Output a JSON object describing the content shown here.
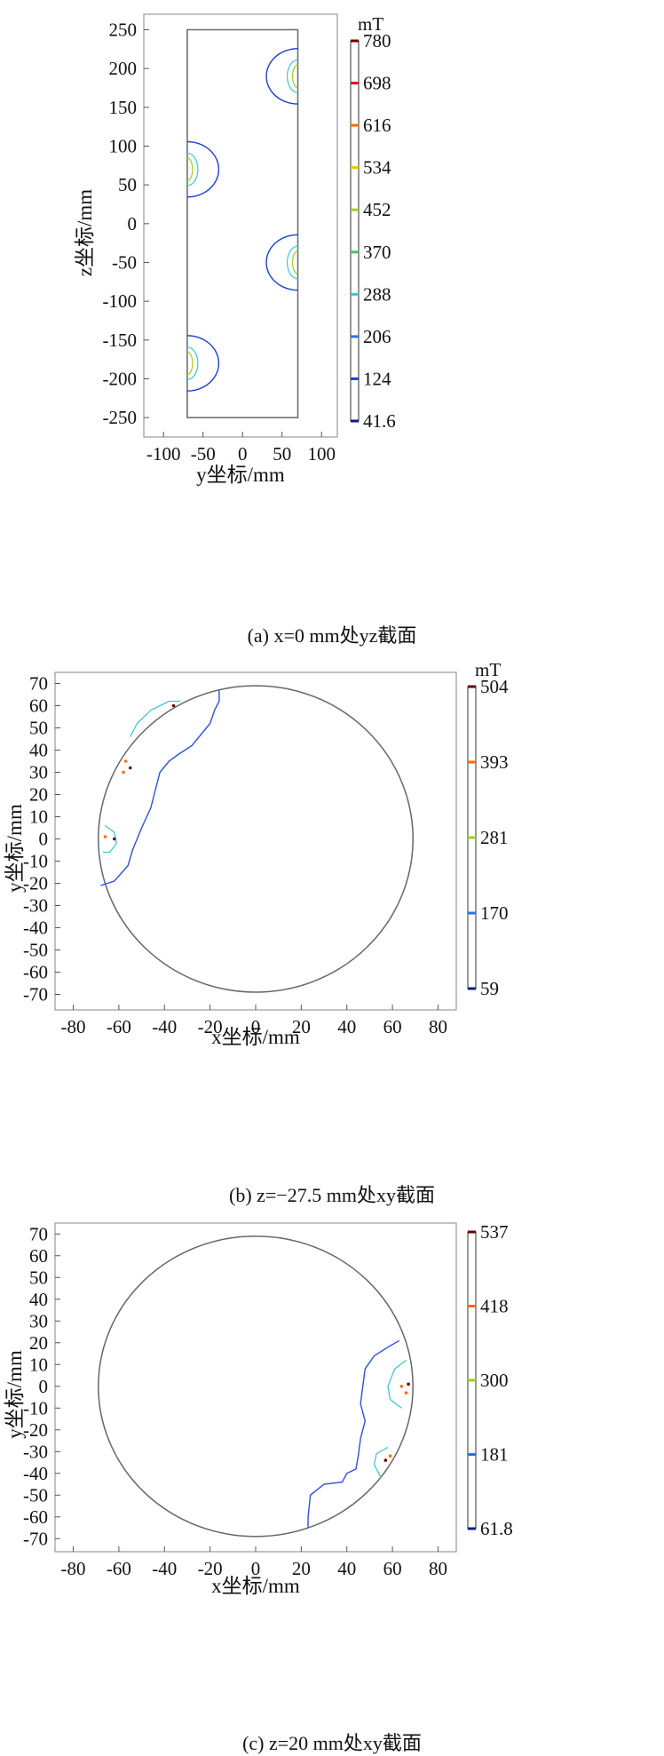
{
  "chart_data": [
    {
      "id": "a",
      "type": "contour",
      "caption": "(a) x=0 mm处yz截面",
      "xlabel": "y坐标/mm",
      "ylabel": "z坐标/mm",
      "xlim": [
        -125,
        120
      ],
      "ylim": [
        -275,
        270
      ],
      "xticks": [
        -100,
        -50,
        0,
        50,
        100
      ],
      "yticks": [
        250,
        200,
        150,
        100,
        50,
        0,
        -50,
        -100,
        -150,
        -200,
        -250
      ],
      "colorbar": {
        "unit": "mT",
        "levels": [
          780,
          698,
          616,
          534,
          452,
          370,
          288,
          206,
          124,
          41.6
        ],
        "colors": [
          "#6b0000",
          "#e01010",
          "#ff6a00",
          "#e8c000",
          "#9ad020",
          "#40c860",
          "#30c8d0",
          "#2e70e0",
          "#1c40c8",
          "#101c80"
        ]
      },
      "boundary": {
        "shape": "rect",
        "y": [
          -70,
          70
        ],
        "z": [
          -250,
          250
        ]
      },
      "hotspots": [
        {
          "side": "right",
          "z_center": 190,
          "radius": 42
        },
        {
          "side": "left",
          "z_center": 70,
          "radius": 42
        },
        {
          "side": "right",
          "z_center": -50,
          "radius": 42
        },
        {
          "side": "left",
          "z_center": -180,
          "radius": 42
        }
      ]
    },
    {
      "id": "b",
      "type": "contour",
      "caption": "(b) z=−27.5 mm处xy截面",
      "xlabel": "x坐标/mm",
      "ylabel": "y坐标/mm",
      "xlim": [
        -88,
        88
      ],
      "ylim": [
        -77,
        75
      ],
      "xticks": [
        -80,
        -60,
        -40,
        -20,
        0,
        20,
        40,
        60,
        80
      ],
      "yticks": [
        70,
        60,
        50,
        40,
        30,
        20,
        10,
        0,
        -10,
        -20,
        -30,
        -40,
        -50,
        -60,
        -70
      ],
      "colorbar": {
        "unit": "mT",
        "levels": [
          504,
          393,
          281,
          170,
          59
        ],
        "colors": [
          "#6b0000",
          "#ff6a00",
          "#9ad020",
          "#2e70e0",
          "#101c80"
        ]
      },
      "boundary": {
        "shape": "circle",
        "radius": 69
      },
      "contour_low": [
        [
          -68,
          -21
        ],
        [
          -62,
          -19
        ],
        [
          -56,
          -12
        ],
        [
          -54,
          -5
        ],
        [
          -50,
          5
        ],
        [
          -46,
          14
        ],
        [
          -44,
          22
        ],
        [
          -42,
          30
        ],
        [
          -38,
          35
        ],
        [
          -34,
          38
        ],
        [
          -28,
          42
        ],
        [
          -24,
          47
        ],
        [
          -20,
          52
        ],
        [
          -18,
          58
        ],
        [
          -16,
          62
        ],
        [
          -16,
          67
        ]
      ],
      "contour_mid": [
        [
          [
            -55,
            46
          ],
          [
            -52,
            52
          ],
          [
            -46,
            58
          ],
          [
            -38,
            62
          ],
          [
            -33,
            62
          ]
        ],
        [
          [
            -66,
            6
          ],
          [
            -62,
            3
          ],
          [
            -61,
            -2
          ],
          [
            -64,
            -6
          ],
          [
            -67,
            -6
          ]
        ]
      ],
      "hot_dots": [
        [
          -66,
          1
        ],
        [
          -62,
          0
        ],
        [
          -57,
          35
        ],
        [
          -55,
          32
        ],
        [
          -58,
          30
        ],
        [
          -36,
          60
        ]
      ]
    },
    {
      "id": "c",
      "type": "contour",
      "caption": "(c) z=20 mm处xy截面",
      "xlabel": "x坐标/mm",
      "ylabel": "y坐标/mm",
      "xlim": [
        -88,
        88
      ],
      "ylim": [
        -76,
        75
      ],
      "xticks": [
        -80,
        -60,
        -40,
        -20,
        0,
        20,
        40,
        60,
        80
      ],
      "yticks": [
        70,
        60,
        50,
        40,
        30,
        20,
        10,
        0,
        -10,
        -20,
        -30,
        -40,
        -50,
        -60,
        -70
      ],
      "colorbar": {
        "unit": "",
        "levels": [
          537,
          418,
          300,
          181,
          61.8
        ],
        "colors": [
          "#6b0000",
          "#ff6a00",
          "#9ad020",
          "#2e70e0",
          "#101c80"
        ]
      },
      "boundary": {
        "shape": "circle",
        "radius": 69
      },
      "contour_low": [
        [
          63,
          21
        ],
        [
          58,
          18
        ],
        [
          52,
          14
        ],
        [
          48,
          8
        ],
        [
          47,
          0
        ],
        [
          46,
          -8
        ],
        [
          48,
          -16
        ],
        [
          46,
          -24
        ],
        [
          45,
          -32
        ],
        [
          44,
          -38
        ],
        [
          40,
          -40
        ],
        [
          38,
          -44
        ],
        [
          30,
          -45
        ],
        [
          24,
          -50
        ],
        [
          23,
          -60
        ],
        [
          23,
          -65
        ]
      ],
      "contour_mid": [
        [
          [
            66,
            12
          ],
          [
            61,
            8
          ],
          [
            58,
            0
          ],
          [
            59,
            -6
          ],
          [
            64,
            -10
          ]
        ],
        [
          [
            58,
            -28
          ],
          [
            53,
            -31
          ],
          [
            52,
            -36
          ],
          [
            55,
            -42
          ]
        ]
      ],
      "hot_dots": [
        [
          64,
          0
        ],
        [
          67,
          1
        ],
        [
          66,
          -3
        ],
        [
          57,
          -34
        ],
        [
          59,
          -32
        ]
      ]
    }
  ]
}
